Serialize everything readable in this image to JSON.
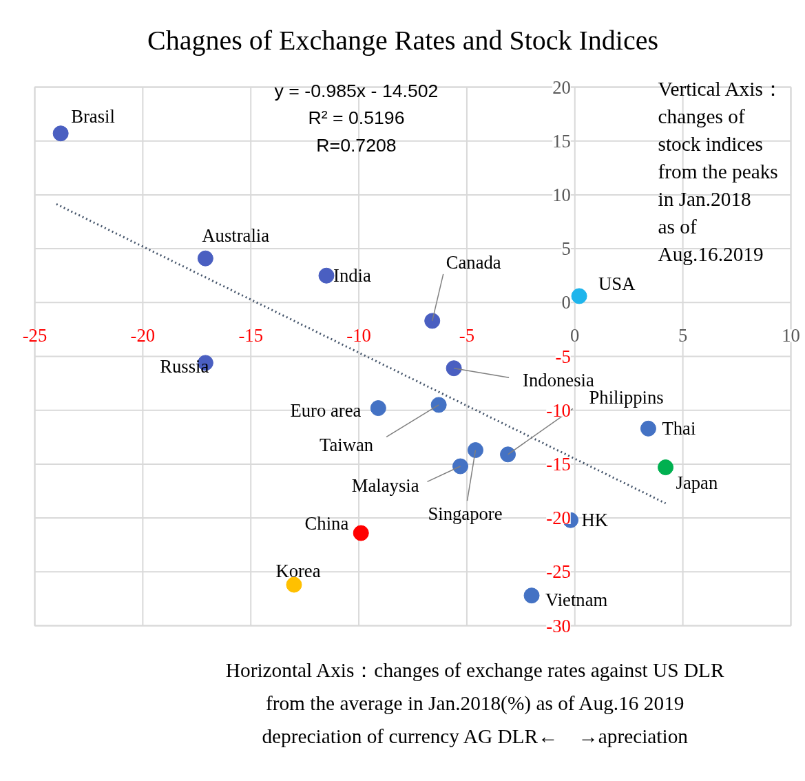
{
  "chart_data": {
    "type": "scatter",
    "title": "Chagnes of Exchange Rates and Stock Indices",
    "xlim": [
      -25,
      10
    ],
    "ylim": [
      -30,
      20
    ],
    "xticks": [
      -25,
      -20,
      -15,
      -10,
      -5,
      0,
      5,
      10
    ],
    "yticks": [
      -30,
      -25,
      -20,
      -15,
      -10,
      -5,
      0,
      5,
      10,
      15,
      20
    ],
    "grid": true,
    "series": [
      {
        "marker": "circle",
        "x": [
          -23.8,
          -17.1,
          -11.5,
          -6.6,
          0.2,
          -17.1,
          -5.6,
          -9.1,
          -6.3,
          -3.1,
          -4.6,
          -5.3,
          3.4,
          4.2,
          -0.2,
          -9.9,
          -13.0,
          -2.0
        ],
        "values": [
          15.7,
          4.1,
          2.5,
          -1.7,
          0.6,
          -5.6,
          -6.1,
          -9.8,
          -9.5,
          -14.1,
          -13.7,
          -15.2,
          -11.7,
          -15.3,
          -20.2,
          -21.4,
          -26.2,
          -27.2
        ],
        "colors": [
          "#4a5fc1",
          "#4a5fc1",
          "#4a5fc1",
          "#4a5fc1",
          "#1fb5ec",
          "#4a5fc1",
          "#4a5fc1",
          "#4472c4",
          "#4472c4",
          "#4472c4",
          "#4472c4",
          "#4472c4",
          "#4472c4",
          "#00b050",
          "#4472c4",
          "#ff0000",
          "#ffc000",
          "#4472c4"
        ]
      },
      {
        "type": "line",
        "x": [
          -24,
          4.2
        ],
        "values": [
          9.14,
          -18.64
        ],
        "color": "#44546a",
        "line_style": "dotted"
      }
    ],
    "annotations": [
      "y = -0.985x - 14.502",
      "R² = 0.5196",
      "R=0.7208",
      "Vertical Axis：\nchanges of\nstock indices\nfrom the peaks\nin Jan.2018\nas of\nAug.16.2019",
      "Horizontal Axis：changes of exchange rates against US DLR\nfrom the average in Jan.2018(%) as of Aug.16 2019\ndepreciation of currency AG DLR←　→apreciation",
      {
        "text": "Brasil",
        "x": -23.8,
        "y": 15.7
      },
      {
        "text": "Australia",
        "x": -17.1,
        "y": 4.1
      },
      {
        "text": "India",
        "x": -11.5,
        "y": 2.5
      },
      {
        "text": "Canada",
        "x": -6.6,
        "y": -1.7
      },
      {
        "text": "USA",
        "x": 0.2,
        "y": 0.6
      },
      {
        "text": "Russia",
        "x": -17.1,
        "y": -5.6
      },
      {
        "text": "Indonesia",
        "x": -5.6,
        "y": -6.1
      },
      {
        "text": "Euro area",
        "x": -9.1,
        "y": -9.8
      },
      {
        "text": "Taiwan",
        "x": -6.3,
        "y": -9.5
      },
      {
        "text": "Philippins",
        "x": -3.1,
        "y": -14.1
      },
      {
        "text": "Singapore",
        "x": -4.6,
        "y": -13.7
      },
      {
        "text": "Malaysia",
        "x": -5.3,
        "y": -15.2
      },
      {
        "text": "Thai",
        "x": 3.4,
        "y": -11.7
      },
      {
        "text": "Japan",
        "x": 4.2,
        "y": -15.3
      },
      {
        "text": "HK",
        "x": -0.2,
        "y": -20.2
      },
      {
        "text": "China",
        "x": -9.9,
        "y": -21.4
      },
      {
        "text": "Korea",
        "x": -13.0,
        "y": -26.2
      },
      {
        "text": "Vietnam",
        "x": -2.0,
        "y": -27.2
      }
    ]
  }
}
